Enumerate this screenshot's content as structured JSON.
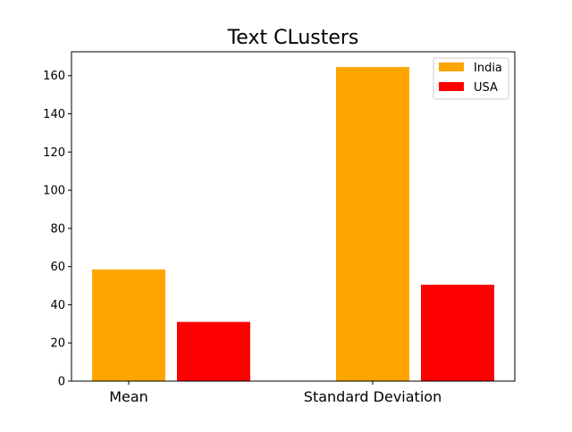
{
  "chart_data": {
    "type": "bar",
    "title": "Text CLusters",
    "xlabel": "",
    "ylabel": "",
    "categories": [
      "Mean",
      "Standard Deviation"
    ],
    "series": [
      {
        "name": "India",
        "values": [
          58.5,
          164.5
        ],
        "color": "#ffa500"
      },
      {
        "name": "USA",
        "values": [
          31,
          50.5
        ],
        "color": "#ff0000"
      }
    ],
    "ylim": [
      0,
      172.5
    ],
    "yticks": [
      "0",
      "20",
      "40",
      "60",
      "80",
      "100",
      "120",
      "140",
      "160"
    ],
    "grid": false,
    "legend_position": "top-right"
  }
}
